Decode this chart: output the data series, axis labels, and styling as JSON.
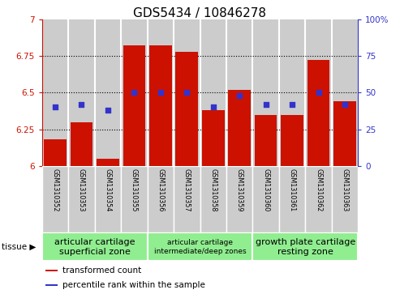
{
  "title": "GDS5434 / 10846278",
  "samples": [
    "GSM1310352",
    "GSM1310353",
    "GSM1310354",
    "GSM1310355",
    "GSM1310356",
    "GSM1310357",
    "GSM1310358",
    "GSM1310359",
    "GSM1310360",
    "GSM1310361",
    "GSM1310362",
    "GSM1310363"
  ],
  "red_values": [
    6.18,
    6.3,
    6.05,
    6.82,
    6.82,
    6.78,
    6.38,
    6.52,
    6.35,
    6.35,
    6.72,
    6.44
  ],
  "blue_values": [
    40,
    42,
    38,
    50,
    50,
    50,
    40,
    48,
    42,
    42,
    50,
    42
  ],
  "ymin": 6.0,
  "ymax": 7.0,
  "y2min": 0,
  "y2max": 100,
  "yticks": [
    6.0,
    6.25,
    6.5,
    6.75,
    7.0
  ],
  "ytick_labels": [
    "6",
    "6.25",
    "6.5",
    "6.75",
    "7"
  ],
  "y2ticks": [
    0,
    25,
    50,
    75,
    100
  ],
  "y2tick_labels": [
    "0",
    "25",
    "50",
    "75",
    "100%"
  ],
  "red_color": "#cc1100",
  "blue_color": "#3333cc",
  "bar_bg_color": "#cccccc",
  "tissue_bg_color": "#90ee90",
  "tissue_groups": [
    {
      "label": "articular cartilage\nsuperficial zone",
      "indices": [
        0,
        1,
        2,
        3
      ],
      "fontsize": 8
    },
    {
      "label": "articular cartilage\nintermediate/deep zones",
      "indices": [
        4,
        5,
        6,
        7
      ],
      "fontsize": 6.5
    },
    {
      "label": "growth plate cartilage\nresting zone",
      "indices": [
        8,
        9,
        10,
        11
      ],
      "fontsize": 8
    }
  ],
  "legend_items": [
    {
      "color": "#cc1100",
      "label": "transformed count"
    },
    {
      "color": "#3333cc",
      "label": "percentile rank within the sample"
    }
  ],
  "title_fontsize": 11,
  "tick_fontsize": 7.5,
  "bar_width": 0.85
}
